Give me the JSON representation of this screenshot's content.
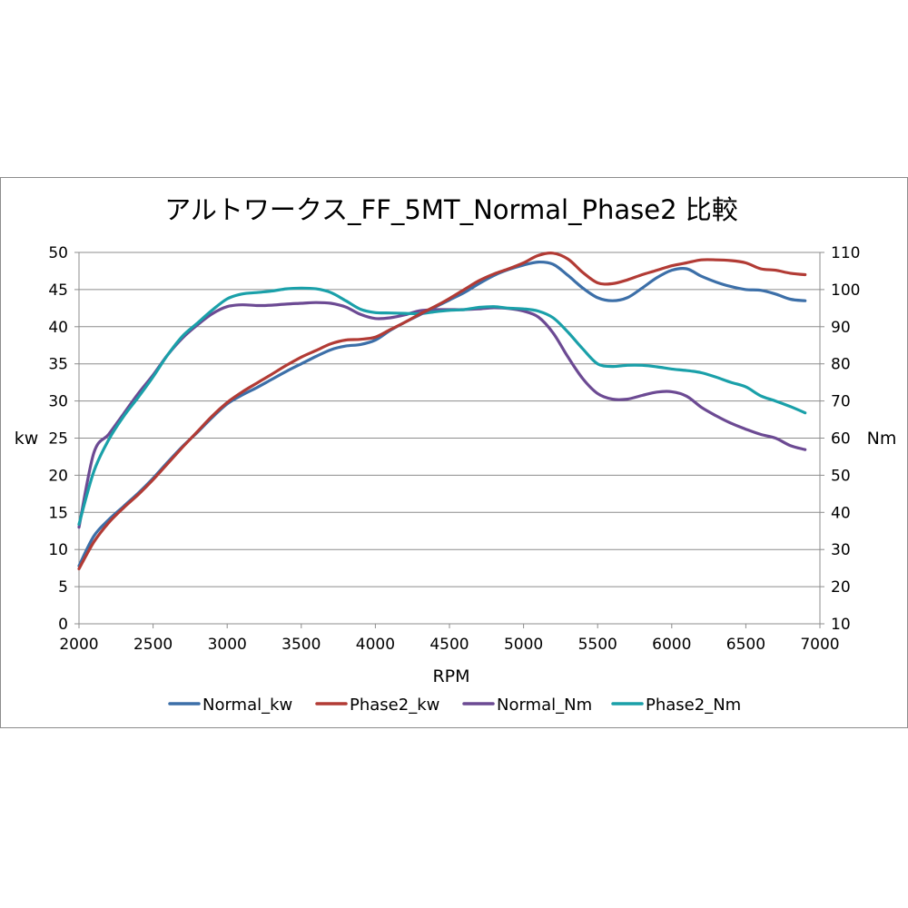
{
  "chart_data": {
    "type": "line",
    "title": "アルトワークス_FF_5MT_Normal_Phase2 比較",
    "xlabel": "RPM",
    "ylabel_left": "kw",
    "ylabel_right": "Nm",
    "xlim": [
      2000,
      7000
    ],
    "ylim_left": [
      0,
      50
    ],
    "ylim_right": [
      10,
      110
    ],
    "x_ticks": [
      "2000",
      "2500",
      "3000",
      "3500",
      "4000",
      "4500",
      "5000",
      "5500",
      "6000",
      "6500",
      "7000"
    ],
    "y_left_ticks": [
      "0",
      "5",
      "10",
      "15",
      "20",
      "25",
      "30",
      "35",
      "40",
      "45",
      "50"
    ],
    "y_right_ticks": [
      "10",
      "20",
      "30",
      "40",
      "50",
      "60",
      "70",
      "80",
      "90",
      "100",
      "110"
    ],
    "grid": true,
    "legend": "bottom",
    "x": [
      2000,
      2100,
      2200,
      2300,
      2400,
      2500,
      2600,
      2700,
      2800,
      2900,
      3000,
      3100,
      3200,
      3300,
      3400,
      3500,
      3600,
      3700,
      3800,
      3900,
      4000,
      4100,
      4200,
      4300,
      4400,
      4500,
      4600,
      4700,
      4800,
      4900,
      5000,
      5100,
      5200,
      5300,
      5400,
      5500,
      5600,
      5700,
      5800,
      5900,
      6000,
      6100,
      6200,
      6300,
      6400,
      6500,
      6600,
      6700,
      6800,
      6900
    ],
    "series": [
      {
        "name": "Normal_kw",
        "axis": "left",
        "color": "#3c6fa8",
        "values": [
          7.8,
          11.8,
          14.0,
          15.8,
          17.6,
          19.6,
          21.8,
          23.9,
          25.8,
          27.8,
          29.6,
          30.8,
          31.8,
          32.9,
          34.0,
          35.0,
          36.0,
          36.9,
          37.4,
          37.6,
          38.2,
          39.5,
          40.6,
          41.6,
          42.6,
          43.6,
          44.6,
          45.8,
          46.9,
          47.7,
          48.3,
          48.7,
          48.4,
          46.9,
          45.2,
          43.9,
          43.5,
          43.9,
          45.2,
          46.6,
          47.6,
          47.8,
          46.8,
          46.0,
          45.4,
          45.0,
          44.9,
          44.4,
          43.7,
          43.5
        ]
      },
      {
        "name": "Phase2_kw",
        "axis": "left",
        "color": "#b23b35",
        "values": [
          7.4,
          11.0,
          13.6,
          15.6,
          17.4,
          19.4,
          21.6,
          23.8,
          25.9,
          28.0,
          29.8,
          31.2,
          32.4,
          33.6,
          34.8,
          35.9,
          36.8,
          37.7,
          38.2,
          38.3,
          38.6,
          39.6,
          40.6,
          41.7,
          42.7,
          43.8,
          45.0,
          46.2,
          47.1,
          47.8,
          48.6,
          49.6,
          49.9,
          49.1,
          47.3,
          45.9,
          45.8,
          46.3,
          47.0,
          47.6,
          48.2,
          48.6,
          49.0,
          49.0,
          48.9,
          48.6,
          47.8,
          47.6,
          47.2,
          47.0
        ]
      },
      {
        "name": "Normal_Nm",
        "axis": "right",
        "color": "#6c4a93",
        "values": [
          36.0,
          56.0,
          61.0,
          66.5,
          72.0,
          77.0,
          82.5,
          87.0,
          90.5,
          93.5,
          95.4,
          95.9,
          95.7,
          95.8,
          96.1,
          96.3,
          96.5,
          96.3,
          95.3,
          93.3,
          92.2,
          92.4,
          93.2,
          94.3,
          94.6,
          94.6,
          94.6,
          94.8,
          95.1,
          94.9,
          94.2,
          92.6,
          88.3,
          81.8,
          76.0,
          72.0,
          70.5,
          70.5,
          71.5,
          72.4,
          72.5,
          71.3,
          68.3,
          66.0,
          64.0,
          62.4,
          61.0,
          60.0,
          58.0,
          56.9
        ]
      },
      {
        "name": "Phase2_Nm",
        "axis": "right",
        "color": "#1aa0a9",
        "values": [
          36.8,
          51.0,
          59.5,
          65.8,
          71.0,
          76.5,
          82.5,
          87.5,
          91.0,
          94.5,
          97.5,
          98.8,
          99.2,
          99.6,
          100.2,
          100.4,
          100.2,
          99.2,
          97.0,
          94.7,
          93.8,
          93.7,
          93.6,
          93.5,
          94.0,
          94.4,
          94.6,
          95.2,
          95.4,
          95.0,
          94.8,
          94.2,
          92.4,
          88.5,
          84.0,
          80.0,
          79.3,
          79.6,
          79.6,
          79.2,
          78.6,
          78.2,
          77.6,
          76.4,
          75.0,
          73.8,
          71.4,
          70.0,
          68.5,
          66.8
        ]
      }
    ]
  }
}
